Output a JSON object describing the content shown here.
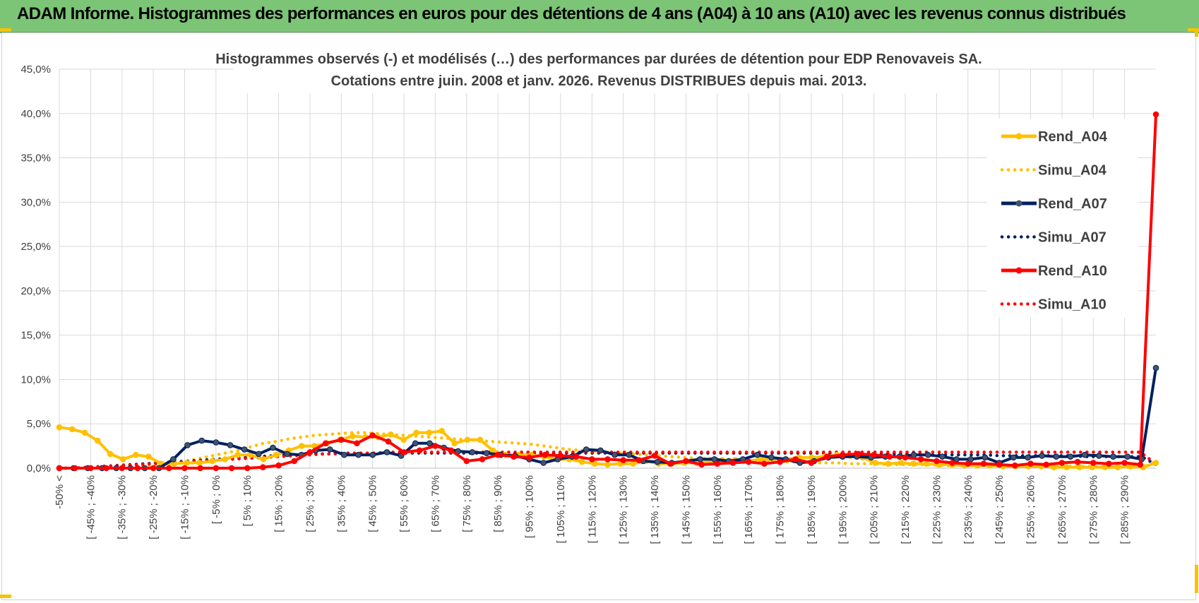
{
  "banner": {
    "title": "ADAM Informe. Histogrammes des performances en euros pour des détentions de 4 ans (A04) à 10 ans (A10) avec les revenus connus distribués"
  },
  "colors": {
    "banner_bg": "#7cc576",
    "A04": "#ffc000",
    "A07": "#002060",
    "A10": "#ff0000",
    "grid": "#d9d9d9",
    "text": "#404040"
  },
  "chart_data": {
    "type": "line",
    "title_line1": "Histogrammes observés (-) et modélisés (…) des performances par durées de détention pour EDP Renovaveis SA.",
    "title_line2": "Cotations entre juin. 2008 et janv. 2026. Revenus DISTRIBUES depuis mai. 2013.",
    "xlabel": "",
    "ylabel": "",
    "ylim": [
      0,
      45
    ],
    "yticks": [
      "0,0%",
      "5,0%",
      "10,0%",
      "15,0%",
      "20,0%",
      "25,0%",
      "30,0%",
      "35,0%",
      "40,0%",
      "45,0%"
    ],
    "grid": true,
    "legend_position": "right",
    "x_tick_labels": [
      "-50% <",
      "[ -45% ; -40%",
      "[ -35% ; -30%",
      "[ -25% ; -20%",
      "[ -15% ; -10%",
      "[ -5% ; 0%",
      "[ 5% ; 10%",
      "[ 15% ; 20%",
      "[ 25% ; 30%",
      "[ 35% ; 40%",
      "[ 45% ; 50%",
      "[ 55% ; 60%",
      "[ 65% ; 70%",
      "[ 75% ; 80%",
      "[ 85% ; 90%",
      "[ 95% ; 100%",
      "[ 105% ; 110%",
      "[ 115% ; 120%",
      "[ 125% ; 130%",
      "[ 135% ; 140%",
      "[ 145% ; 150%",
      "[ 155% ; 160%",
      "[ 165% ; 170%",
      "[ 175% ; 180%",
      "[ 185% ; 190%",
      "[ 195% ; 200%",
      "[ 205% ; 210%",
      "[ 215% ; 220%",
      "[ 225% ; 230%",
      "[ 235% ; 240%",
      "[ 245% ; 250%",
      "[ 255% ; 260%",
      "[ 265% ; 270%",
      "[ 275% ; 280%",
      "[ 285% ; 290%"
    ],
    "series": [
      {
        "name": "Rend_A04",
        "style": "solid",
        "color": "#ffc000",
        "values": [
          4.6,
          4.4,
          4.0,
          3.1,
          1.6,
          1.0,
          1.5,
          1.3,
          0.5,
          0.5,
          0.6,
          0.6,
          0.8,
          1.0,
          1.5,
          1.5,
          1.0,
          1.5,
          2.0,
          2.5,
          2.5,
          2.8,
          3.2,
          3.6,
          3.5,
          3.5,
          3.8,
          3.2,
          4.0,
          4.0,
          4.2,
          2.8,
          3.2,
          3.2,
          2.0,
          1.5,
          1.5,
          1.5,
          1.3,
          1.0,
          1.0,
          0.7,
          0.5,
          0.4,
          0.5,
          0.5,
          0.8,
          0.5,
          0.5,
          0.6,
          0.6,
          0.7,
          0.9,
          0.9,
          0.8,
          1.0,
          1.0,
          1.0,
          1.2,
          1.2,
          1.3,
          1.5,
          1.4,
          1.2,
          0.6,
          0.5,
          0.6,
          0.5,
          0.5,
          0.4,
          0.4,
          0.3,
          0.3,
          0.3,
          0.2,
          0.2,
          0.2,
          0.2,
          0.1,
          0.1,
          0.1,
          0.1,
          0.1,
          0.1,
          0.2,
          0.1,
          0.6
        ]
      },
      {
        "name": "Simu_A04",
        "style": "dotted",
        "color": "#ffc000",
        "values": [
          0.0,
          0.0,
          0.0,
          0.1,
          0.1,
          0.1,
          0.2,
          0.3,
          0.4,
          0.6,
          0.8,
          1.1,
          1.4,
          1.7,
          2.0,
          2.4,
          2.8,
          3.0,
          3.3,
          3.5,
          3.7,
          3.8,
          3.9,
          4.0,
          4.0,
          3.9,
          3.8,
          3.7,
          3.6,
          3.5,
          3.4,
          3.3,
          3.2,
          3.1,
          3.0,
          2.9,
          2.8,
          2.7,
          2.5,
          2.3,
          2.1,
          2.0,
          1.9,
          1.8,
          1.7,
          1.6,
          1.5,
          1.4,
          1.3,
          1.2,
          1.1,
          1.1,
          1.0,
          0.9,
          0.9,
          0.8,
          0.8,
          0.7,
          0.7,
          0.6,
          0.6,
          0.6,
          0.5,
          0.5,
          0.5,
          0.4,
          0.4,
          0.4,
          0.4,
          0.3,
          0.3,
          0.3,
          0.3,
          0.3,
          0.2,
          0.2,
          0.2,
          0.2,
          0.2,
          0.2,
          0.2,
          0.2,
          0.1,
          0.1,
          0.1,
          0.1,
          0.7
        ]
      },
      {
        "name": "Rend_A07",
        "style": "solid",
        "color": "#002060",
        "values": [
          0.0,
          0.0,
          0.0,
          0.0,
          0.0,
          0.0,
          0.0,
          0.0,
          1.0,
          2.6,
          3.1,
          2.9,
          2.6,
          2.1,
          1.6,
          2.3,
          1.6,
          1.5,
          2.0,
          2.1,
          1.5,
          1.5,
          1.5,
          1.8,
          1.4,
          2.8,
          2.8,
          2.3,
          1.9,
          1.8,
          1.7,
          1.5,
          1.4,
          1.0,
          0.6,
          1.0,
          1.3,
          2.1,
          2.0,
          1.5,
          1.5,
          0.8,
          0.7,
          0.6,
          0.8,
          1.0,
          1.0,
          0.8,
          1.0,
          1.5,
          1.2,
          1.0,
          0.6,
          0.8,
          1.2,
          1.3,
          1.3,
          1.2,
          1.3,
          1.3,
          1.5,
          1.5,
          1.3,
          1.0,
          1.0,
          1.2,
          0.6,
          1.2,
          1.2,
          1.4,
          1.3,
          1.3,
          1.5,
          1.4,
          1.3,
          1.3,
          1.0,
          11.3
        ]
      },
      {
        "name": "Simu_A07",
        "style": "dotted",
        "color": "#002060",
        "values": [
          0.0,
          0.0,
          0.1,
          0.2,
          0.3,
          0.4,
          0.5,
          0.6,
          0.7,
          0.8,
          0.9,
          1.0,
          1.1,
          1.2,
          1.3,
          1.4,
          1.5,
          1.5,
          1.6,
          1.6,
          1.7,
          1.7,
          1.7,
          1.7,
          1.7,
          1.7,
          1.7,
          1.7,
          1.7,
          1.7,
          1.7,
          1.7,
          1.7,
          1.7,
          1.7,
          1.7,
          1.7,
          1.7,
          1.7,
          1.7,
          1.7,
          1.7,
          1.7,
          1.7,
          1.7,
          1.7,
          1.7,
          1.7,
          1.7,
          1.7,
          1.7,
          1.7,
          1.7,
          1.7,
          1.7,
          1.6,
          1.6,
          1.6,
          1.6,
          1.6,
          1.6,
          1.5,
          1.5,
          1.5,
          1.5,
          1.5,
          1.4,
          1.4,
          1.4,
          1.4,
          1.4,
          1.4,
          1.3,
          1.3,
          1.3,
          1.3,
          1.3,
          0.4
        ]
      },
      {
        "name": "Rend_A10",
        "style": "solid",
        "color": "#ff0000",
        "values": [
          0.0,
          0.0,
          0.0,
          0.0,
          0.0,
          0.0,
          0.0,
          0.0,
          0.0,
          0.0,
          0.0,
          0.0,
          0.0,
          0.1,
          0.3,
          0.8,
          1.8,
          2.8,
          3.2,
          2.8,
          3.7,
          3.0,
          1.8,
          2.0,
          2.5,
          2.0,
          0.8,
          1.0,
          1.5,
          1.3,
          1.2,
          1.5,
          1.4,
          1.3,
          1.0,
          1.0,
          0.9,
          0.9,
          1.4,
          0.5,
          0.8,
          0.4,
          0.5,
          0.6,
          0.7,
          0.5,
          0.7,
          1.0,
          0.6,
          1.3,
          1.5,
          1.6,
          1.5,
          1.3,
          1.2,
          1.0,
          0.8,
          0.6,
          0.5,
          0.5,
          0.4,
          0.3,
          0.5,
          0.4,
          0.6,
          0.7,
          0.6,
          0.5,
          0.6,
          0.4,
          39.9
        ]
      },
      {
        "name": "Simu_A10",
        "style": "dotted",
        "color": "#ff0000",
        "values": [
          0.0,
          0.0,
          0.1,
          0.2,
          0.3,
          0.4,
          0.5,
          0.6,
          0.7,
          0.8,
          0.9,
          1.0,
          1.1,
          1.2,
          1.3,
          1.4,
          1.5,
          1.6,
          1.6,
          1.7,
          1.7,
          1.8,
          1.8,
          1.8,
          1.8,
          1.8,
          1.8,
          1.8,
          1.8,
          1.8,
          1.8,
          1.8,
          1.8,
          1.8,
          1.8,
          1.8,
          1.8,
          1.8,
          1.8,
          1.8,
          1.8,
          1.8,
          1.8,
          1.8,
          1.8,
          1.8,
          1.8,
          1.8,
          1.8,
          1.8,
          1.8,
          1.8,
          1.8,
          1.8,
          1.8,
          1.8,
          1.8,
          1.8,
          1.8,
          1.8,
          1.8,
          1.8,
          1.8,
          1.8,
          1.8,
          1.8,
          1.8,
          1.8,
          1.8,
          1.8,
          0.5
        ]
      }
    ]
  }
}
